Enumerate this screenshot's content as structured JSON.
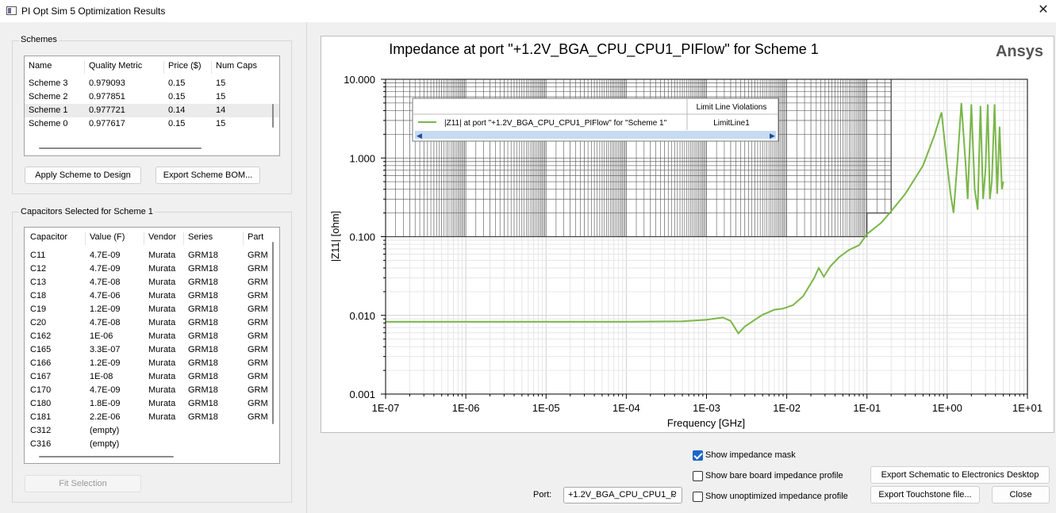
{
  "window": {
    "title": "PI Opt Sim 5 Optimization Results",
    "close": "✕"
  },
  "schemes": {
    "group_title": "Schemes",
    "columns": [
      "Name",
      "Quality Metric",
      "Price ($)",
      "Num Caps"
    ],
    "rows": [
      [
        "Scheme 3",
        "0.979093",
        "0.15",
        "15"
      ],
      [
        "Scheme 2",
        "0.977851",
        "0.15",
        "15"
      ],
      [
        "Scheme 1",
        "0.977721",
        "0.14",
        "14"
      ],
      [
        "Scheme 0",
        "0.977617",
        "0.15",
        "15"
      ]
    ],
    "selected_index": 2,
    "apply_button": "Apply Scheme to Design",
    "export_bom_button": "Export Scheme BOM..."
  },
  "capacitors": {
    "group_title": "Capacitors Selected for Scheme 1",
    "columns": [
      "Capacitor",
      "Value (F)",
      "Vendor",
      "Series",
      "Part"
    ],
    "rows": [
      [
        "C11",
        "4.7E-09",
        "Murata",
        "GRM18",
        "GRM"
      ],
      [
        "C12",
        "4.7E-09",
        "Murata",
        "GRM18",
        "GRM"
      ],
      [
        "C13",
        "4.7E-08",
        "Murata",
        "GRM18",
        "GRM"
      ],
      [
        "C18",
        "4.7E-06",
        "Murata",
        "GRM18",
        "GRM"
      ],
      [
        "C19",
        "1.2E-09",
        "Murata",
        "GRM18",
        "GRM"
      ],
      [
        "C20",
        "4.7E-08",
        "Murata",
        "GRM18",
        "GRM"
      ],
      [
        "C162",
        "1E-06",
        "Murata",
        "GRM18",
        "GRM"
      ],
      [
        "C165",
        "3.3E-07",
        "Murata",
        "GRM18",
        "GRM"
      ],
      [
        "C166",
        "1.2E-09",
        "Murata",
        "GRM18",
        "GRM"
      ],
      [
        "C167",
        "1E-08",
        "Murata",
        "GRM18",
        "GRM"
      ],
      [
        "C170",
        "4.7E-09",
        "Murata",
        "GRM18",
        "GRM"
      ],
      [
        "C180",
        "1.8E-09",
        "Murata",
        "GRM18",
        "GRM"
      ],
      [
        "C181",
        "2.2E-06",
        "Murata",
        "GRM18",
        "GRM"
      ],
      [
        "C312",
        "(empty)",
        "",
        "",
        ""
      ],
      [
        "C316",
        "(empty)",
        "",
        "",
        ""
      ]
    ],
    "fit_button": "Fit Selection"
  },
  "plot": {
    "title": "Impedance at port \"+1.2V_BGA_CPU_CPU1_PIFlow\" for Scheme 1",
    "brand": "Ansys",
    "legend_header": "Limit Line Violations",
    "legend_series": "|Z11| at port \"+1.2V_BGA_CPU_CPU1_PIFlow\" for \"Scheme 1\"",
    "legend_violation": "LimitLine1"
  },
  "chart_data": {
    "type": "line",
    "xlabel": "Frequency [GHz]",
    "ylabel": "|Z11| [ohm]",
    "xscale": "log",
    "yscale": "log",
    "xlim": [
      1e-07,
      10
    ],
    "ylim": [
      0.001,
      10
    ],
    "x_tick_labels": [
      "1E-07",
      "1E-06",
      "1E-05",
      "1E-04",
      "1E-03",
      "1E-02",
      "1E-01",
      "1E+00",
      "1E+01"
    ],
    "y_tick_labels": [
      "10.000",
      "1.000",
      "0.100",
      "0.010",
      "0.001"
    ],
    "grid": true,
    "line_color": "#7ab648",
    "mask_color": "#555555",
    "series": [
      {
        "name": "|Z11| at port \"+1.2V_BGA_CPU_CPU1_PIFlow\" for \"Scheme 1\"",
        "x": [
          1e-07,
          1e-06,
          1e-05,
          0.0001,
          0.0005,
          0.001,
          0.0016,
          0.002,
          0.0025,
          0.003,
          0.004,
          0.005,
          0.006,
          0.007,
          0.009,
          0.012,
          0.016,
          0.022,
          0.025,
          0.029,
          0.035,
          0.045,
          0.06,
          0.08,
          0.1,
          0.15,
          0.2,
          0.3,
          0.5,
          0.7,
          0.85,
          1.0,
          1.1,
          1.2,
          1.35,
          1.5,
          1.7,
          1.8,
          2.0,
          2.2,
          2.4,
          2.6,
          2.8,
          3.0,
          3.2,
          3.4,
          3.6,
          3.9,
          4.2,
          4.5,
          4.8,
          5.0
        ],
        "y": [
          0.0083,
          0.0083,
          0.0083,
          0.0083,
          0.0084,
          0.0088,
          0.0094,
          0.0085,
          0.0059,
          0.0072,
          0.0088,
          0.0102,
          0.011,
          0.0118,
          0.0122,
          0.0135,
          0.0175,
          0.03,
          0.04,
          0.031,
          0.042,
          0.055,
          0.068,
          0.078,
          0.108,
          0.15,
          0.21,
          0.35,
          0.8,
          2.0,
          3.8,
          0.8,
          0.35,
          0.2,
          1.0,
          5.0,
          0.8,
          0.3,
          4.8,
          0.4,
          0.22,
          4.6,
          0.3,
          0.7,
          4.8,
          0.3,
          0.5,
          4.8,
          0.35,
          2.5,
          0.4,
          0.5
        ]
      }
    ],
    "mask": [
      {
        "x": [
          1e-07,
          0.1
        ],
        "y": 0.1
      },
      {
        "x": [
          0.1,
          0.2
        ],
        "y": 0.2
      },
      {
        "upper": 10
      }
    ]
  },
  "controls": {
    "show_mask": {
      "label": "Show impedance mask",
      "checked": true
    },
    "show_bare": {
      "label": "Show bare board impedance profile",
      "checked": false
    },
    "show_unopt": {
      "label": "Show unoptimized impedance profile",
      "checked": false
    },
    "port_label": "Port:",
    "port_value": "+1.2V_BGA_CPU_CPU1_P",
    "export_schematic": "Export Schematic to Electronics Desktop",
    "export_touchstone": "Export Touchstone file...",
    "close": "Close"
  }
}
